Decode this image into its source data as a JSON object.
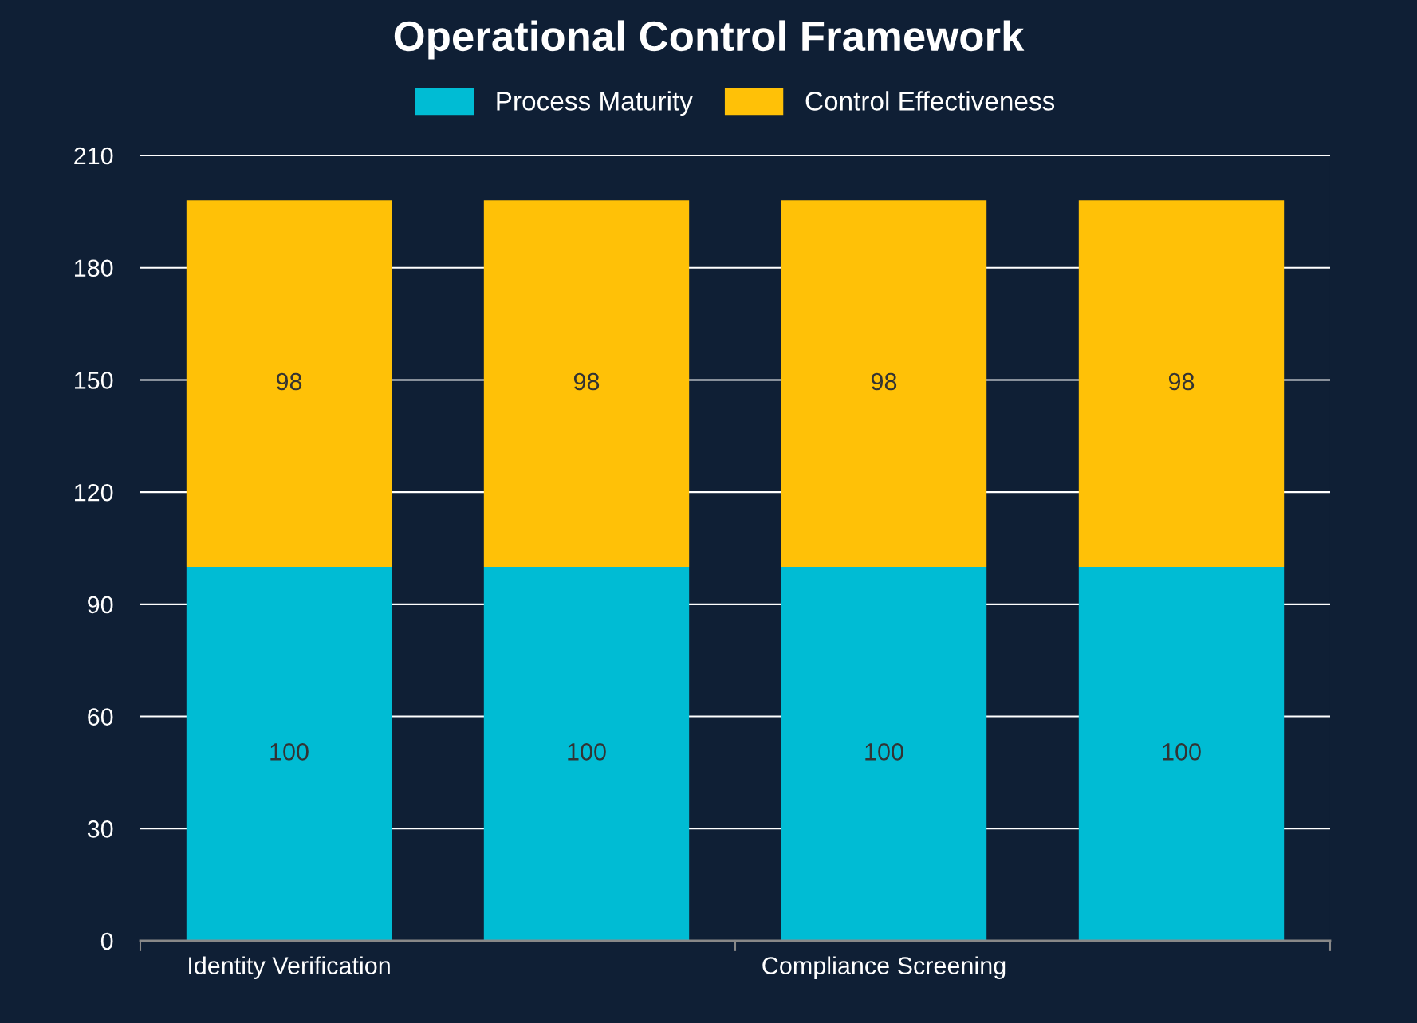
{
  "chart_data": {
    "type": "bar",
    "title": "Operational Control Framework",
    "categories": [
      "Identity Verification",
      null,
      "Compliance Screening",
      null
    ],
    "stacked": true,
    "series": [
      {
        "name": "Process Maturity",
        "color": "#00bcd4",
        "values": [
          100,
          100,
          100,
          100
        ]
      },
      {
        "name": "Control Effectiveness",
        "color": "#ffc107",
        "values": [
          98,
          98,
          98,
          98
        ]
      }
    ],
    "ylim": [
      0,
      210
    ],
    "yticks": [
      0,
      30,
      60,
      90,
      120,
      150,
      180,
      210
    ],
    "grid": "y",
    "legend": "top",
    "data_labels": true
  }
}
